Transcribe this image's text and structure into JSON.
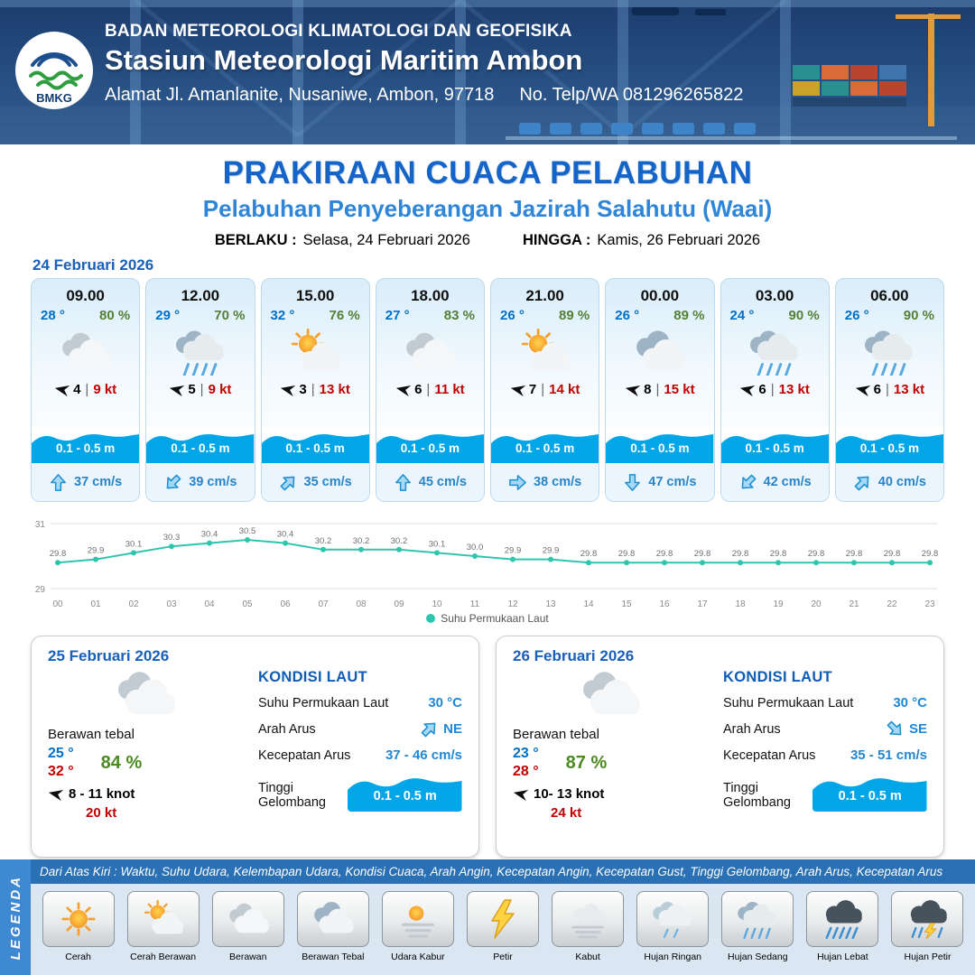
{
  "header": {
    "logo": "BMKG",
    "org": "BADAN METEOROLOGI KLIMATOLOGI DAN GEOFISIKA",
    "station": "Stasiun Meteorologi Maritim Ambon",
    "address": "Alamat Jl. Amanlanite, Nusaniwe, Ambon, 97718",
    "phone": "No. Telp/WA  081296265822"
  },
  "title": {
    "main": "PRAKIRAAN CUACA PELABUHAN",
    "subtitle": "Pelabuhan Penyeberangan Jazirah Salahutu (Waai)",
    "valid_from_label": "BERLAKU :",
    "valid_from": "Selasa, 24 Februari 2026",
    "valid_to_label": "HINGGA :",
    "valid_to": "Kamis, 26 Februari 2026"
  },
  "hourly_date": "24 Februari 2026",
  "hourly": [
    {
      "time": "09.00",
      "temp": "28 °",
      "humidity": "80 %",
      "icon": "berawan",
      "icon_ref": "#icon-berawan",
      "wind_speed": "4",
      "wind_gust": "9 kt",
      "wave": "0.1 - 0.5 m",
      "current_speed": "37 cm/s",
      "current_dir_deg": -90
    },
    {
      "time": "12.00",
      "temp": "29 °",
      "humidity": "70 %",
      "icon": "hujan-sedang",
      "icon_ref": "#icon-hujan-sedang",
      "wind_speed": "5",
      "wind_gust": "9 kt",
      "wave": "0.1 - 0.5 m",
      "current_speed": "39 cm/s",
      "current_dir_deg": 135
    },
    {
      "time": "15.00",
      "temp": "32 °",
      "humidity": "76 %",
      "icon": "cerah-berawan",
      "icon_ref": "#icon-cerah-berawan",
      "wind_speed": "3",
      "wind_gust": "13 kt",
      "wave": "0.1 - 0.5 m",
      "current_speed": "35 cm/s",
      "current_dir_deg": -45
    },
    {
      "time": "18.00",
      "temp": "27 °",
      "humidity": "83 %",
      "icon": "berawan",
      "icon_ref": "#icon-berawan",
      "wind_speed": "6",
      "wind_gust": "11 kt",
      "wave": "0.1 - 0.5 m",
      "current_speed": "45 cm/s",
      "current_dir_deg": -90
    },
    {
      "time": "21.00",
      "temp": "26 °",
      "humidity": "89 %",
      "icon": "cerah-berawan",
      "icon_ref": "#icon-cerah-berawan",
      "wind_speed": "7",
      "wind_gust": "14 kt",
      "wave": "0.1 - 0.5 m",
      "current_speed": "38 cm/s",
      "current_dir_deg": 0
    },
    {
      "time": "00.00",
      "temp": "26 °",
      "humidity": "89 %",
      "icon": "berawan-tebal",
      "icon_ref": "#icon-berawan-tebal",
      "wind_speed": "8",
      "wind_gust": "15 kt",
      "wave": "0.1 - 0.5 m",
      "current_speed": "47 cm/s",
      "current_dir_deg": 90
    },
    {
      "time": "03.00",
      "temp": "24 °",
      "humidity": "90 %",
      "icon": "hujan-sedang",
      "icon_ref": "#icon-hujan-sedang",
      "wind_speed": "6",
      "wind_gust": "13 kt",
      "wave": "0.1 - 0.5 m",
      "current_speed": "42 cm/s",
      "current_dir_deg": 135
    },
    {
      "time": "06.00",
      "temp": "26 °",
      "humidity": "90 %",
      "icon": "hujan-sedang",
      "icon_ref": "#icon-hujan-sedang",
      "wind_speed": "6",
      "wind_gust": "13 kt",
      "wave": "0.1 - 0.5 m",
      "current_speed": "40 cm/s",
      "current_dir_deg": -45
    }
  ],
  "chart_data": {
    "type": "line",
    "x": [
      "00",
      "01",
      "02",
      "03",
      "04",
      "05",
      "06",
      "07",
      "08",
      "09",
      "10",
      "11",
      "12",
      "13",
      "14",
      "15",
      "16",
      "17",
      "18",
      "19",
      "20",
      "21",
      "22",
      "23"
    ],
    "series": [
      {
        "name": "Suhu Permukaan Laut",
        "values": [
          29.8,
          29.9,
          30.1,
          30.3,
          30.4,
          30.5,
          30.4,
          30.2,
          30.2,
          30.2,
          30.1,
          30.0,
          29.9,
          29.9,
          29.8,
          29.8,
          29.8,
          29.8,
          29.8,
          29.8,
          29.8,
          29.8,
          29.8,
          29.8
        ]
      }
    ],
    "ylim": [
      29,
      31
    ],
    "line_color": "#2fc5ad",
    "grid": true,
    "legend_position": "bottom"
  },
  "daily": [
    {
      "date": "25 Februari 2026",
      "condition": "Berawan tebal",
      "icon": "berawan",
      "icon_ref": "#icon-berawan",
      "temp_min": "25 °",
      "temp_max": "32 °",
      "humidity": "84 %",
      "wind": "8 - 11 knot",
      "gust": "20 kt",
      "sea": {
        "heading": "KONDISI LAUT",
        "sst_label": "Suhu Permukaan Laut",
        "sst": "30 °C",
        "current_dir_label": "Arah Arus",
        "current_dir": "NE",
        "current_dir_deg": -45,
        "current_speed_label": "Kecepatan Arus",
        "current_speed": "37 - 46 cm/s",
        "wave_label": "Tinggi Gelombang",
        "wave": "0.1 - 0.5 m"
      }
    },
    {
      "date": "26 Februari 2026",
      "condition": "Berawan tebal",
      "icon": "berawan",
      "icon_ref": "#icon-berawan",
      "temp_min": "23 °",
      "temp_max": "28 °",
      "humidity": "87 %",
      "wind": "10- 13 knot",
      "gust": "24 kt",
      "sea": {
        "heading": "KONDISI LAUT",
        "sst_label": "Suhu Permukaan Laut",
        "sst": "30 °C",
        "current_dir_label": "Arah Arus",
        "current_dir": "SE",
        "current_dir_deg": 45,
        "current_speed_label": "Kecepatan Arus",
        "current_speed": "35 - 51 cm/s",
        "wave_label": "Tinggi Gelombang",
        "wave": "0.1 - 0.5 m"
      }
    }
  ],
  "legend": {
    "title": "LEGENDA",
    "note": "Dari Atas Kiri : Waktu, Suhu Udara, Kelembapan Udara, Kondisi Cuaca, Arah Angin, Kecepatan Angin, Kecepatan Gust, Tinggi Gelombang, Arah Arus, Kecepatan Arus",
    "items": [
      {
        "label": "Cerah",
        "icon": "cerah",
        "icon_ref": "#icon-cerah"
      },
      {
        "label": "Cerah Berawan",
        "icon": "cerah-berawan",
        "icon_ref": "#icon-cerah-berawan"
      },
      {
        "label": "Berawan",
        "icon": "berawan",
        "icon_ref": "#icon-berawan"
      },
      {
        "label": "Berawan Tebal",
        "icon": "berawan-tebal",
        "icon_ref": "#icon-berawan-tebal"
      },
      {
        "label": "Udara Kabur",
        "icon": "udara-kabur",
        "icon_ref": "#icon-udara-kabur"
      },
      {
        "label": "Petir",
        "icon": "petir",
        "icon_ref": "#icon-petir"
      },
      {
        "label": "Kabut",
        "icon": "kabut",
        "icon_ref": "#icon-kabut"
      },
      {
        "label": "Hujan Ringan",
        "icon": "hujan-ringan",
        "icon_ref": "#icon-hujan-ringan"
      },
      {
        "label": "Hujan Sedang",
        "icon": "hujan-sedang",
        "icon_ref": "#icon-hujan-sedang"
      },
      {
        "label": "Hujan Lebat",
        "icon": "hujan-lebat",
        "icon_ref": "#icon-hujan-lebat"
      },
      {
        "label": "Hujan Petir",
        "icon": "hujan-petir",
        "icon_ref": "#icon-hujan-petir"
      }
    ]
  },
  "colors": {
    "header_navy": "#1c3c6d",
    "title_blue": "#1565c8",
    "subtitle_blue": "#2f86d8",
    "temp_blue": "#0070c8",
    "humidity_green": "#538135",
    "gust_red": "#c00000",
    "wave_blue": "#00a6e8",
    "chart_line_teal": "#2fc5ad",
    "legend_bar_blue": "#2a70b5"
  }
}
